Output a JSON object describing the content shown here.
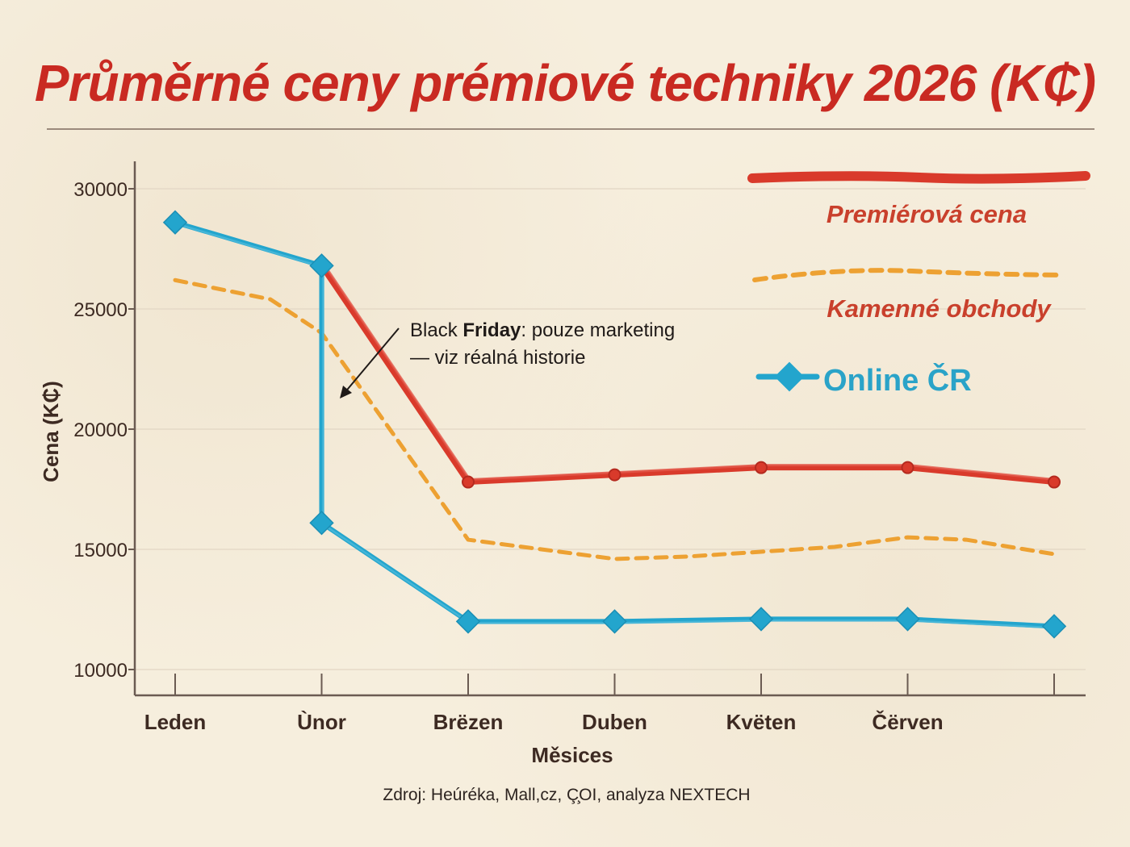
{
  "title": "Průměrné ceny prémiové techniky 2026 (K₵)",
  "source": "Zdroj: Heúréka, Mall,cz, Ç̧OI, analyza NEXTECH",
  "annotation": {
    "line1_pre": "Black ",
    "line1_bold": "Friday",
    "line1_post": ": pouze marketing",
    "line2": "— viz réalná historie"
  },
  "colors": {
    "premiere": "#d93a2b",
    "stores": "#eda132",
    "online": "#23a5cd",
    "axis": "#6b5b52",
    "text": "#3d2a22"
  },
  "chart_data": {
    "type": "line",
    "title": "Průměrné ceny prémiové techniky 2026 (K₵)",
    "xlabel": "Měsices",
    "ylabel": "Cena (K₵)",
    "ylim": [
      9000,
      31000
    ],
    "yticks": [
      10000,
      15000,
      20000,
      25000,
      30000
    ],
    "categories": [
      "Leden",
      "Ùnor",
      "Brëzen",
      "Duben",
      "Kvëten",
      "Čërven",
      ""
    ],
    "grid": "horizontal",
    "legend_position": "top-right",
    "series": [
      {
        "name": "Premiérová cena",
        "style": "solid-thick",
        "color": "#d93a2b",
        "markers": "circle",
        "x": [
          1,
          2,
          3,
          4,
          5,
          6
        ],
        "y": [
          26800,
          17800,
          18100,
          18400,
          18400,
          17800
        ]
      },
      {
        "name": "Kamenné obchody",
        "style": "dashed",
        "color": "#eda132",
        "markers": "none",
        "x": [
          0,
          0.65,
          1,
          2,
          2.5,
          3,
          3.5,
          4,
          4.5,
          5,
          5.4,
          6
        ],
        "y": [
          26200,
          25400,
          24000,
          15400,
          15000,
          14600,
          14700,
          14900,
          15100,
          15500,
          15400,
          14800
        ]
      },
      {
        "name": "Online ČR",
        "style": "solid",
        "color": "#23a5cd",
        "markers": "diamond",
        "x": [
          0,
          1,
          1,
          2,
          3,
          4,
          5,
          6
        ],
        "y": [
          28600,
          26800,
          16100,
          12000,
          12000,
          12100,
          12100,
          11800
        ]
      }
    ]
  }
}
